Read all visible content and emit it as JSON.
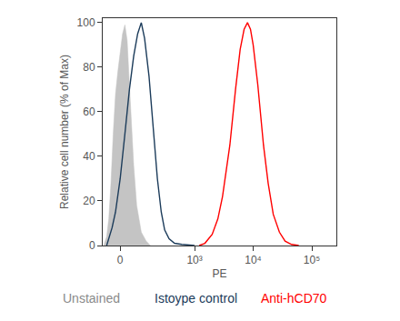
{
  "chart_data": {
    "type": "line",
    "x_label": "PE",
    "y_label": "Relative cell number (% of Max)",
    "xlim": [
      -80,
      262144
    ],
    "ylim": [
      0,
      102
    ],
    "xticks": [
      0,
      {
        "value": 1000,
        "label": "10³"
      },
      {
        "value": 10000,
        "label": "10⁴"
      },
      {
        "value": 100000,
        "label": "10⁵"
      }
    ],
    "yticks": [
      0,
      20,
      40,
      60,
      80,
      100
    ],
    "grid": false,
    "series": [
      {
        "name": "Unstained",
        "color": "#c4c4c4",
        "type": "area",
        "x": [
          -75,
          -60,
          -50,
          -40,
          -30,
          -20,
          -10,
          0,
          10,
          20,
          30,
          40,
          50,
          60,
          75,
          100,
          130,
          160
        ],
        "values": [
          0,
          4,
          12,
          28,
          50,
          68,
          78,
          86,
          95,
          99,
          92,
          72,
          52,
          36,
          18,
          6,
          2,
          0
        ]
      },
      {
        "name": "Istoype control",
        "color": "#1b3b5a",
        "type": "line",
        "x": [
          -60,
          -50,
          -35,
          -20,
          0,
          20,
          40,
          60,
          80,
          100,
          120,
          150,
          180,
          220,
          260,
          300,
          360,
          450,
          600,
          1000
        ],
        "values": [
          0,
          3,
          8,
          15,
          30,
          50,
          70,
          85,
          95,
          100,
          93,
          76,
          55,
          30,
          15,
          7,
          3,
          1,
          0.5,
          0
        ]
      },
      {
        "name": "Anti-hCD70",
        "color": "#ff0000",
        "type": "line",
        "x": [
          1200,
          1500,
          2000,
          2500,
          3000,
          4000,
          5000,
          6000,
          7000,
          8000,
          9000,
          10000,
          12000,
          15000,
          18000,
          22000,
          28000,
          35000,
          45000,
          60000
        ],
        "values": [
          0,
          1,
          5,
          12,
          22,
          45,
          70,
          88,
          97,
          100,
          97,
          90,
          72,
          45,
          28,
          14,
          6,
          2,
          0.5,
          0
        ]
      }
    ]
  }
}
